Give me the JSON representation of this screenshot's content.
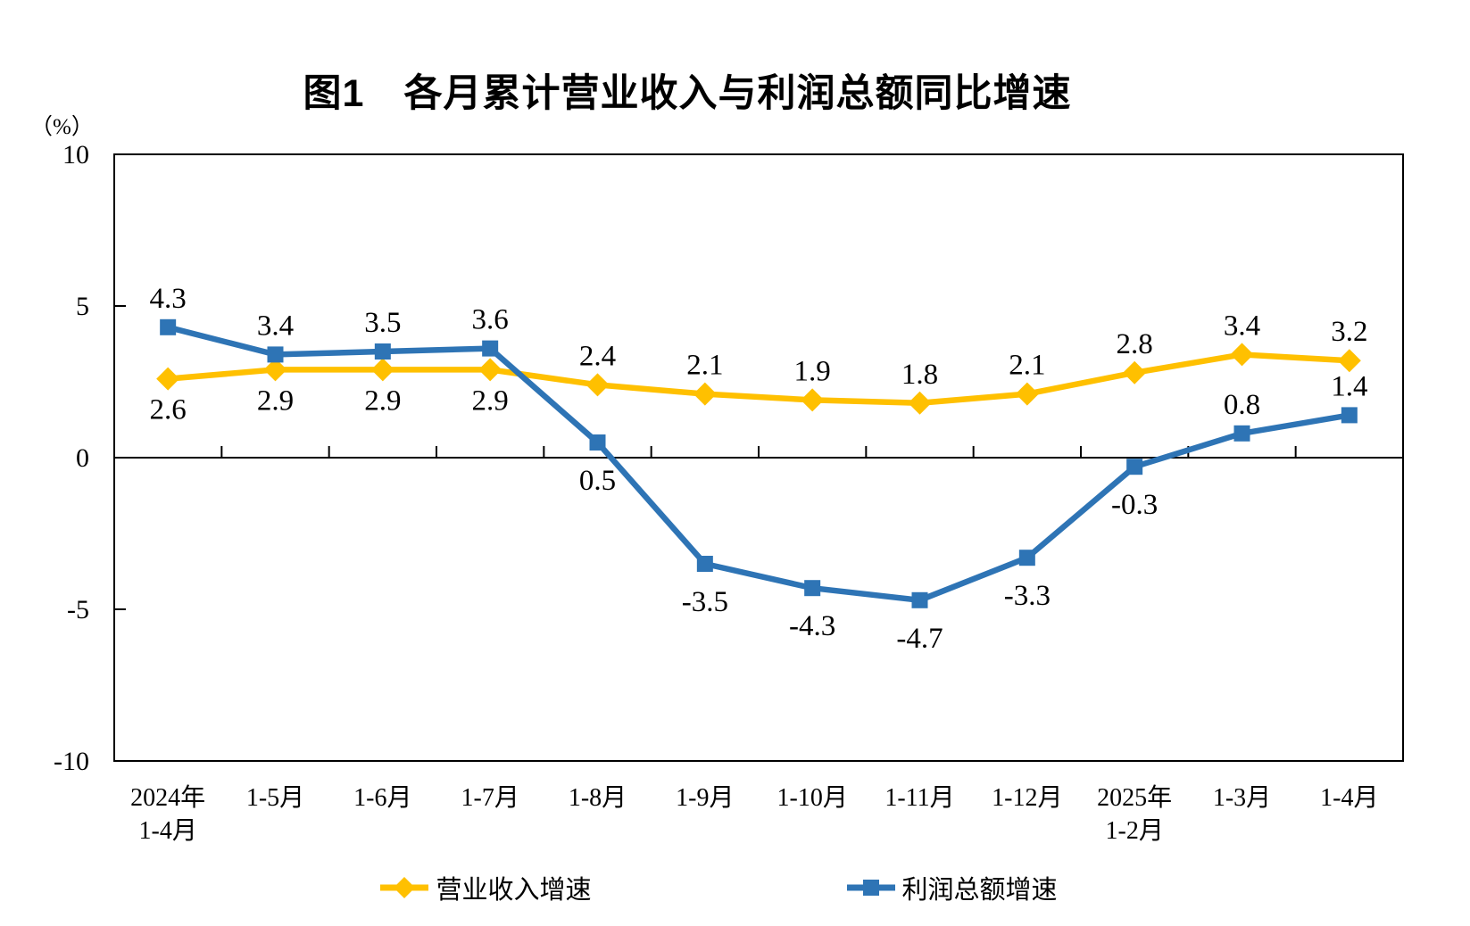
{
  "chart_data": {
    "type": "line",
    "title": "图1　各月累计营业收入与利润总额同比增速",
    "y_unit": "（%）",
    "ylim": [
      -10,
      10
    ],
    "y_ticks": [
      10,
      5,
      0,
      -5,
      -10
    ],
    "grid": false,
    "legend_position": "bottom",
    "axis_color": "#000000",
    "text_color": "#000000",
    "categories": [
      [
        "2024年",
        "1-4月"
      ],
      "1-5月",
      "1-6月",
      "1-7月",
      "1-8月",
      "1-9月",
      "1-10月",
      "1-11月",
      "1-12月",
      [
        "2025年",
        "1-2月"
      ],
      "1-3月",
      "1-4月"
    ],
    "series": [
      {
        "name": "营业收入增速",
        "color": "#FFC000",
        "marker": "diamond",
        "values": [
          2.6,
          2.9,
          2.9,
          2.9,
          2.4,
          2.1,
          1.9,
          1.8,
          2.1,
          2.8,
          3.4,
          3.2
        ],
        "label_side": [
          "below",
          "below",
          "below",
          "below",
          "above",
          "above",
          "above",
          "above",
          "above",
          "above",
          "above",
          "above"
        ]
      },
      {
        "name": "利润总额增速",
        "color": "#2E74B5",
        "marker": "square",
        "values": [
          4.3,
          3.4,
          3.5,
          3.6,
          0.5,
          -3.5,
          -4.3,
          -4.7,
          -3.3,
          -0.3,
          0.8,
          1.4
        ],
        "label_side": [
          "above",
          "above",
          "above",
          "above",
          "below",
          "below",
          "below",
          "below",
          "below",
          "below",
          "above",
          "above"
        ]
      }
    ]
  }
}
